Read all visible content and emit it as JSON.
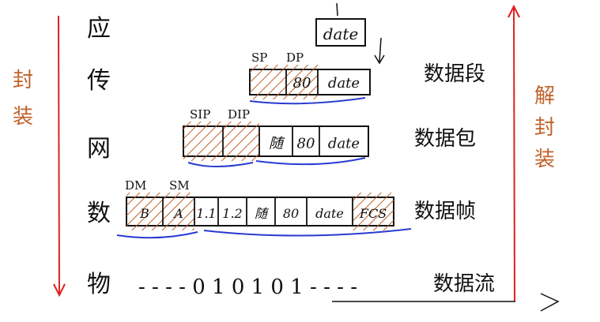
{
  "layers": [
    {
      "id": "app",
      "label": "应",
      "pdu": ""
    },
    {
      "id": "tran",
      "label": "传",
      "pdu": "数据段"
    },
    {
      "id": "net",
      "label": "网",
      "pdu": "数据包"
    },
    {
      "id": "link",
      "label": "数",
      "pdu": "数据帧"
    },
    {
      "id": "phys",
      "label": "物",
      "pdu": "数据流"
    }
  ],
  "app_box": {
    "data": "date"
  },
  "transport": {
    "headers": [
      "SP",
      "DP"
    ],
    "cells": [
      "",
      "80",
      "date"
    ]
  },
  "network": {
    "headers": [
      "SIP",
      "DIP"
    ],
    "cells": [
      "",
      "",
      "随",
      "80",
      "date"
    ]
  },
  "link": {
    "headers": [
      "DM",
      "SM"
    ],
    "cells": [
      "B",
      "A",
      "1.1",
      "1.2",
      "随",
      "80",
      "date",
      "FCS"
    ]
  },
  "physical": {
    "bits": "- - - - 0 1 0 1 0 1 - - - -"
  },
  "left_arrow": {
    "label": "封装"
  },
  "right_arrow": {
    "label": "解封装"
  },
  "colors": {
    "red": "#e02020",
    "blue": "#2a3bd0",
    "orange": "#c0622a",
    "ink": "#111111"
  }
}
